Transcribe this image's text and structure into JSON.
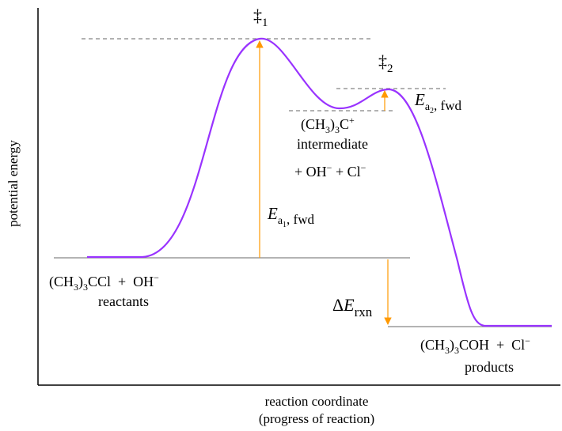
{
  "axes": {
    "y_label": "potential energy",
    "x_label_line1": "reaction coordinate",
    "x_label_line2": "(progress of reaction)"
  },
  "transition_states": {
    "ts1_symbol": "‡",
    "ts1_sub": "1",
    "ts2_symbol": "‡",
    "ts2_sub": "2"
  },
  "reactants": {
    "formula_a": "(CH",
    "formula_a_sub": "3",
    "formula_b": ")",
    "formula_b_sub": "3",
    "formula_c": "CCl  +  OH",
    "formula_c_sup": "−",
    "label": "reactants"
  },
  "intermediate": {
    "formula_a": "(CH",
    "formula_a_sub": "3",
    "formula_b": ")",
    "formula_b_sub": "3",
    "formula_c": "C",
    "formula_c_sup": "+",
    "label": "intermediate",
    "extra_a": "+ OH",
    "extra_a_sup": "−",
    "extra_b": " + Cl",
    "extra_b_sup": "−"
  },
  "products": {
    "formula_a": "(CH",
    "formula_a_sub": "3",
    "formula_b": ")",
    "formula_b_sub": "3",
    "formula_c": "COH  +  Cl",
    "formula_c_sup": "−",
    "label": "products"
  },
  "energy_labels": {
    "ea1_E": "E",
    "ea1_a": "a",
    "ea1_1": "1",
    "ea1_fwd": ", fwd",
    "ea2_E": "E",
    "ea2_a": "a",
    "ea2_2": "2",
    "ea2_fwd": ", fwd",
    "rxn_delta": "Δ",
    "rxn_E": "E",
    "rxn_sub": "rxn"
  },
  "colors": {
    "curve": "#9933ff",
    "arrow": "#ff9900",
    "dashed": "#999999",
    "level_line": "#888888",
    "axis": "#000000"
  }
}
